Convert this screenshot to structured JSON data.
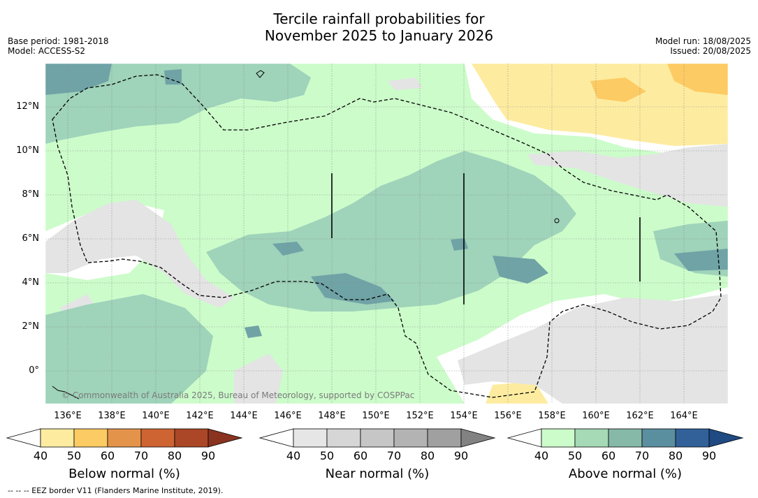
{
  "title_line1": "Tercile rainfall probabilities for",
  "title_line2": "November 2025 to January 2026",
  "meta_left": [
    "Base period: 1981-2018",
    "Model: ACCESS-S2"
  ],
  "meta_right": [
    "Model run: 18/08/2025",
    "Issued: 20/08/2025"
  ],
  "axes": {
    "lat_ticks": [
      "12°N",
      "10°N",
      "8°N",
      "6°N",
      "4°N",
      "2°N",
      "0°"
    ],
    "lon_ticks": [
      "136°E",
      "138°E",
      "140°E",
      "142°E",
      "144°E",
      "146°E",
      "148°E",
      "150°E",
      "152°E",
      "154°E",
      "156°E",
      "158°E",
      "160°E",
      "162°E",
      "164°E"
    ]
  },
  "copyright": "© Commonwealth of Australia 2025, Bureau of Meteorology, supported by COSPPac",
  "colorbars": [
    {
      "title": "Below normal (%)",
      "ticks": [
        "40",
        "50",
        "60",
        "70",
        "80",
        "90"
      ],
      "colors": [
        "#fdeca0",
        "#fdcb63",
        "#e3944a",
        "#cf6433",
        "#ab4726"
      ],
      "extend_color": "#8a3320"
    },
    {
      "title": "Near normal (%)",
      "ticks": [
        "40",
        "50",
        "60",
        "70",
        "80",
        "90"
      ],
      "colors": [
        "#e6e6e6",
        "#d6d6d6",
        "#c6c6c6",
        "#b3b3b3",
        "#a0a0a0"
      ],
      "extend_color": "#828282"
    },
    {
      "title": "Above normal (%)",
      "ticks": [
        "40",
        "50",
        "60",
        "70",
        "80",
        "90"
      ],
      "colors": [
        "#ccfcca",
        "#a6d9b6",
        "#86b9a7",
        "#5a8fa0",
        "#32619a"
      ],
      "extend_color": "#1f4a82"
    }
  ],
  "footer": "--  --  -- EEZ border V11 (Flanders Marine Institute, 2019).",
  "map_colors": {
    "above_40": "#ccfcca",
    "above_50": "#9fd3ba",
    "above_60": "#6fa3a6",
    "near_40": "#e4e4e4",
    "below_40": "#fdeca0",
    "below_50": "#fdcb63"
  }
}
